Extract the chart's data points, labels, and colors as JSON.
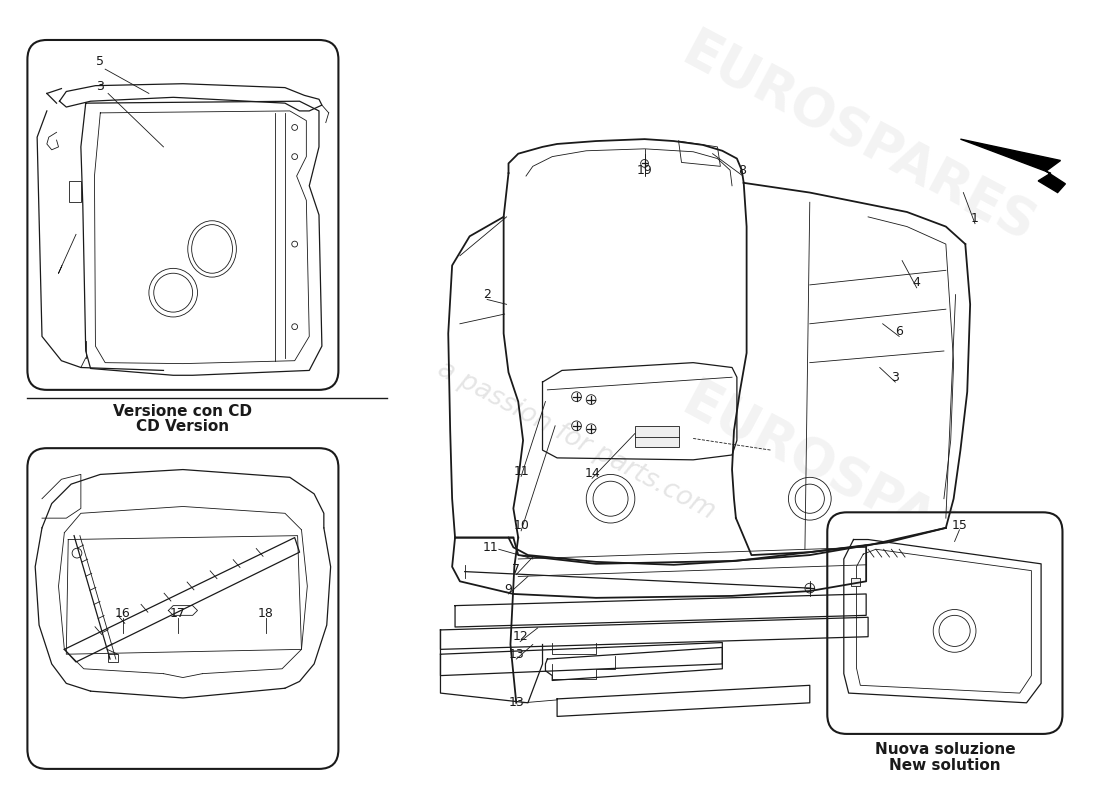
{
  "bg_color": "#ffffff",
  "lc": "#1a1a1a",
  "box1_label1": "Versione con CD",
  "box1_label2": "CD Version",
  "box2_label1": "Nuova soluzione",
  "box2_label2": "New solution",
  "wm1": "a passion for parts.com",
  "wm2": "EUROSPARES",
  "fs_label": 9,
  "fs_caption": 11,
  "lw_main": 1.3,
  "lw_med": 0.9,
  "lw_thin": 0.6
}
